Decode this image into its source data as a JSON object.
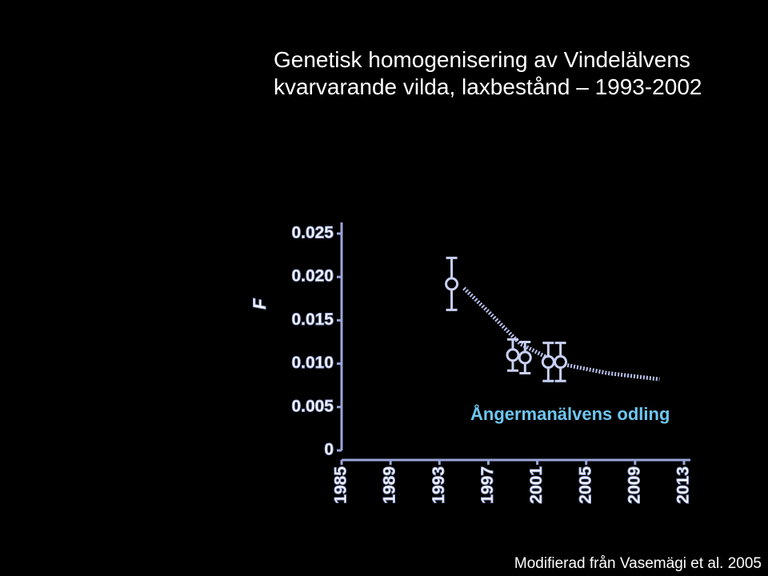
{
  "chart_data": {
    "type": "errorbar",
    "title": "Genetisk homogenisering av Vindelälvens kvarvarande vilda, laxbestånd – 1993-2002",
    "y_label": "F",
    "annotation": "Ångermanälvens odling",
    "source": "Modifierad från Vasemägi et al. 2005",
    "xlim": [
      1985,
      2013
    ],
    "xticks": [
      1985,
      1989,
      1993,
      1997,
      2001,
      2005,
      2009,
      2013
    ],
    "ylim": [
      0,
      0.025
    ],
    "yticks": [
      0,
      0.005,
      {
        "value": 0.01,
        "label": "0.010"
      },
      0.015,
      {
        "value": 0.02,
        "label": "0.020"
      },
      0.025
    ],
    "points": {
      "color": "#c8d0f4",
      "x": [
        1994.0,
        1999.0,
        2000.0,
        2001.9,
        2002.9
      ],
      "values": [
        0.0192,
        0.011,
        0.0107,
        0.0102,
        0.0102
      ],
      "errors": [
        0.003,
        0.0018,
        0.0018,
        0.0022,
        0.0022
      ]
    },
    "fit": {
      "color": "#b8c0ea",
      "x": [
        1995,
        1997,
        1999.6,
        2002.8,
        2006.8,
        2011
      ],
      "values": [
        0.0187,
        0.016,
        0.0123,
        0.01,
        0.0089,
        0.0082
      ]
    },
    "annotation_color": "#6ec6f0",
    "axis_color": "#9aa6d8"
  }
}
